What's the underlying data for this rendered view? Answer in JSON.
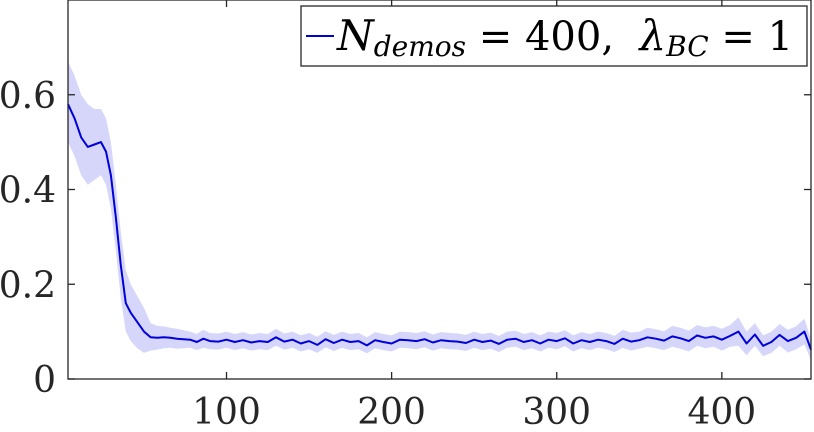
{
  "chart_data": {
    "type": "line",
    "title": "",
    "xlabel": "",
    "ylabel": "",
    "xlim": [
      4,
      454
    ],
    "ylim": [
      0,
      0.8
    ],
    "xticks": [
      100,
      200,
      300,
      400
    ],
    "yticks": [
      0,
      0.2,
      0.4,
      0.6
    ],
    "xtick_labels": [
      "100",
      "200",
      "300",
      "400"
    ],
    "ytick_labels": [
      "0",
      "0.2",
      "0.4",
      "0.6"
    ],
    "grid": false,
    "legend_position": "top-right",
    "legend": {
      "main": "N",
      "main_sub": "demos",
      "mid": " = 400,  ",
      "sym": "λ",
      "sym_sub": "BC",
      "tail": " = 1"
    },
    "series": [
      {
        "color": "#0000d9",
        "band_color": "#c8c8f8",
        "x": [
          4,
          8,
          12,
          16,
          20,
          24,
          27,
          30,
          33,
          36,
          39,
          42,
          46,
          50,
          54,
          58,
          62,
          66,
          70,
          74,
          78,
          82,
          86,
          90,
          95,
          100,
          105,
          110,
          115,
          120,
          125,
          130,
          135,
          140,
          145,
          150,
          155,
          160,
          165,
          170,
          175,
          180,
          185,
          190,
          195,
          200,
          205,
          210,
          215,
          220,
          225,
          230,
          235,
          240,
          245,
          250,
          255,
          260,
          265,
          270,
          275,
          280,
          285,
          290,
          295,
          300,
          305,
          310,
          315,
          320,
          325,
          330,
          335,
          340,
          345,
          350,
          355,
          360,
          365,
          370,
          375,
          380,
          385,
          390,
          395,
          400,
          405,
          410,
          415,
          420,
          425,
          430,
          435,
          440,
          445,
          450,
          454
        ],
        "y": [
          0.58,
          0.55,
          0.51,
          0.49,
          0.495,
          0.5,
          0.48,
          0.43,
          0.34,
          0.24,
          0.16,
          0.14,
          0.12,
          0.1,
          0.088,
          0.087,
          0.088,
          0.087,
          0.085,
          0.084,
          0.083,
          0.078,
          0.085,
          0.08,
          0.079,
          0.083,
          0.078,
          0.082,
          0.077,
          0.08,
          0.078,
          0.088,
          0.079,
          0.083,
          0.075,
          0.08,
          0.072,
          0.084,
          0.076,
          0.083,
          0.078,
          0.08,
          0.071,
          0.082,
          0.078,
          0.075,
          0.083,
          0.082,
          0.08,
          0.084,
          0.077,
          0.082,
          0.08,
          0.079,
          0.076,
          0.083,
          0.078,
          0.081,
          0.074,
          0.083,
          0.085,
          0.078,
          0.082,
          0.075,
          0.083,
          0.08,
          0.086,
          0.075,
          0.082,
          0.078,
          0.083,
          0.08,
          0.074,
          0.085,
          0.079,
          0.082,
          0.088,
          0.085,
          0.081,
          0.09,
          0.086,
          0.08,
          0.092,
          0.087,
          0.09,
          0.083,
          0.091,
          0.1,
          0.075,
          0.094,
          0.07,
          0.078,
          0.093,
          0.08,
          0.087,
          0.1,
          0.062
        ],
        "lower": [
          0.5,
          0.47,
          0.43,
          0.41,
          0.42,
          0.43,
          0.41,
          0.36,
          0.27,
          0.17,
          0.1,
          0.08,
          0.065,
          0.055,
          0.06,
          0.062,
          0.065,
          0.066,
          0.064,
          0.065,
          0.066,
          0.061,
          0.066,
          0.063,
          0.062,
          0.066,
          0.061,
          0.065,
          0.06,
          0.063,
          0.061,
          0.07,
          0.062,
          0.066,
          0.058,
          0.063,
          0.055,
          0.067,
          0.059,
          0.066,
          0.061,
          0.063,
          0.054,
          0.065,
          0.061,
          0.058,
          0.066,
          0.065,
          0.063,
          0.067,
          0.06,
          0.065,
          0.063,
          0.062,
          0.059,
          0.066,
          0.061,
          0.064,
          0.057,
          0.066,
          0.068,
          0.061,
          0.065,
          0.058,
          0.066,
          0.063,
          0.069,
          0.058,
          0.065,
          0.061,
          0.066,
          0.063,
          0.057,
          0.066,
          0.06,
          0.064,
          0.068,
          0.065,
          0.061,
          0.068,
          0.064,
          0.058,
          0.07,
          0.065,
          0.068,
          0.06,
          0.068,
          0.07,
          0.05,
          0.07,
          0.048,
          0.055,
          0.07,
          0.056,
          0.063,
          0.073,
          0.04
        ],
        "upper": [
          0.67,
          0.64,
          0.6,
          0.58,
          0.57,
          0.57,
          0.55,
          0.5,
          0.41,
          0.31,
          0.23,
          0.2,
          0.175,
          0.15,
          0.118,
          0.112,
          0.111,
          0.108,
          0.106,
          0.103,
          0.1,
          0.095,
          0.104,
          0.097,
          0.096,
          0.1,
          0.095,
          0.099,
          0.094,
          0.097,
          0.095,
          0.106,
          0.096,
          0.1,
          0.092,
          0.097,
          0.089,
          0.101,
          0.093,
          0.1,
          0.095,
          0.097,
          0.088,
          0.099,
          0.095,
          0.092,
          0.1,
          0.099,
          0.097,
          0.101,
          0.094,
          0.099,
          0.097,
          0.096,
          0.093,
          0.1,
          0.095,
          0.098,
          0.091,
          0.1,
          0.102,
          0.095,
          0.099,
          0.092,
          0.1,
          0.097,
          0.103,
          0.092,
          0.099,
          0.095,
          0.1,
          0.097,
          0.091,
          0.104,
          0.098,
          0.1,
          0.108,
          0.105,
          0.101,
          0.112,
          0.108,
          0.102,
          0.114,
          0.109,
          0.112,
          0.106,
          0.114,
          0.13,
          0.1,
          0.118,
          0.092,
          0.1,
          0.116,
          0.104,
          0.111,
          0.127,
          0.084
        ]
      }
    ]
  }
}
